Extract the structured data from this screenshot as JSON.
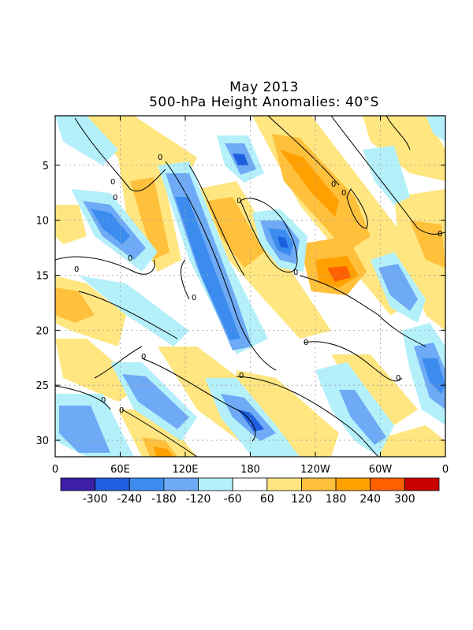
{
  "chart_data": {
    "type": "heatmap",
    "title": "May 2013",
    "subtitle": "500-hPa Height Anomalies: 40°S",
    "xlabel": "",
    "ylabel": "",
    "x_ticks": [
      "0",
      "60E",
      "120E",
      "180",
      "120W",
      "60W",
      "0"
    ],
    "y_ticks": [
      "5",
      "10",
      "15",
      "20",
      "25",
      "30"
    ],
    "y_range": [
      1,
      31
    ],
    "contour_label": "0",
    "grid": "dotted",
    "colorbar": {
      "placement": "bottom",
      "labels": [
        "-300",
        "-240",
        "-180",
        "-120",
        "-60",
        "60",
        "120",
        "180",
        "240",
        "300"
      ],
      "colors": [
        "#3d1fa8",
        "#1e5fe0",
        "#3c8cf0",
        "#6eaaf5",
        "#b4f0fa",
        "#ffffff",
        "#ffe680",
        "#ffc03c",
        "#ffa000",
        "#ff6000",
        "#c80000"
      ]
    }
  }
}
